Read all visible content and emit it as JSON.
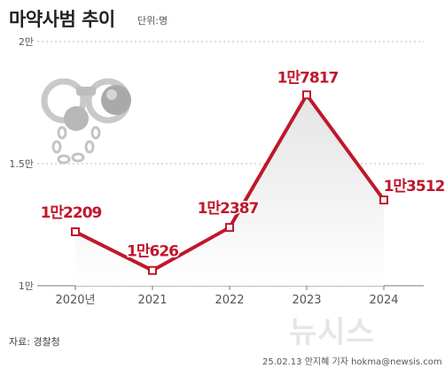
{
  "header": {
    "title": "마약사범 추이",
    "unit": "단위:명"
  },
  "chart_data": {
    "type": "line",
    "title": "마약사범 추이",
    "unit": "단위:명",
    "categories": [
      "2020년",
      "2021",
      "2022",
      "2023",
      "2024"
    ],
    "values": [
      12209,
      10626,
      12387,
      17817,
      13512
    ],
    "data_labels": [
      "1만2209",
      "1만626",
      "1만2387",
      "1만7817",
      "1만3512"
    ],
    "ylim": [
      10000,
      20000
    ],
    "yticks": [
      10000,
      15000,
      20000
    ],
    "ytick_labels": [
      "1만",
      "1.5만",
      "2만"
    ],
    "grid": true,
    "line_color": "#c0172b"
  },
  "footer": {
    "source": "자료: 경찰청",
    "watermark": "뉴시스",
    "credit": "25.02.13 안지혜 기자 hokma@newsis.com"
  }
}
